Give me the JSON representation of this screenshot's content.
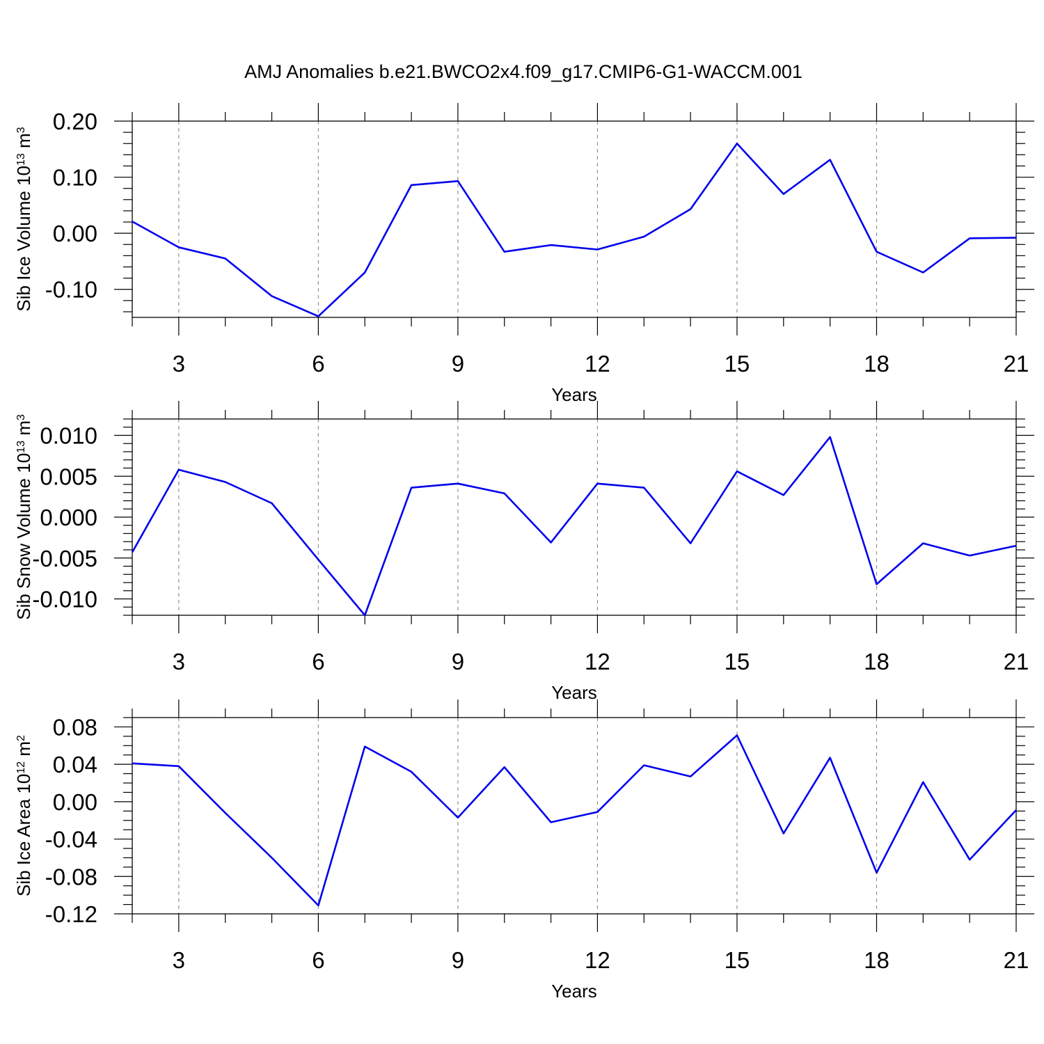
{
  "figure": {
    "title": "AMJ Anomalies b.e21.BWCO2x4.f09_g17.CMIP6-G1-WACCM.001"
  },
  "colors": {
    "series": "#0000ee",
    "axes": "#000000",
    "grid": "#888888"
  },
  "chart_data": [
    {
      "type": "line",
      "xlabel": "Years",
      "ylabel": "Sib Ice Volume 10",
      "ylabel_exponent": "13",
      "ylabel_unit": " m",
      "ylabel_unit_exponent": "3",
      "xlim": [
        2,
        21
      ],
      "ylim": [
        -0.15,
        0.2
      ],
      "x_ticks": [
        3,
        6,
        9,
        12,
        15,
        18,
        21
      ],
      "y_ticks": [
        0.2,
        0.1,
        0.0,
        -0.1
      ],
      "y_tick_labels": [
        "0.20",
        "0.10",
        "0.00",
        "-0.10"
      ],
      "y_minor_step": 0.02,
      "grid": "vertical-dashed",
      "x": [
        2,
        3,
        4,
        5,
        6,
        7,
        8,
        9,
        10,
        11,
        12,
        13,
        14,
        15,
        16,
        17,
        18,
        19,
        20,
        21
      ],
      "series": [
        {
          "values": [
            0.021,
            -0.025,
            -0.045,
            -0.112,
            -0.148,
            -0.07,
            0.086,
            0.093,
            -0.033,
            -0.021,
            -0.029,
            -0.006,
            0.043,
            0.16,
            0.07,
            0.131,
            -0.033,
            -0.07,
            -0.009,
            -0.008
          ]
        }
      ]
    },
    {
      "type": "line",
      "xlabel": "Years",
      "ylabel": "Sib Snow Volume 10",
      "ylabel_exponent": "13",
      "ylabel_unit": " m",
      "ylabel_unit_exponent": "3",
      "xlim": [
        2,
        21
      ],
      "ylim": [
        -0.012,
        0.012
      ],
      "x_ticks": [
        3,
        6,
        9,
        12,
        15,
        18,
        21
      ],
      "y_ticks": [
        0.01,
        0.005,
        0.0,
        -0.005,
        -0.01
      ],
      "y_tick_labels": [
        "0.010",
        "0.005",
        "0.000",
        "-0.005",
        "-0.010"
      ],
      "y_minor_step": 0.001,
      "grid": "vertical-dashed",
      "x": [
        2,
        3,
        4,
        5,
        6,
        7,
        8,
        9,
        10,
        11,
        12,
        13,
        14,
        15,
        16,
        17,
        18,
        19,
        20,
        21
      ],
      "series": [
        {
          "values": [
            -0.0043,
            0.0058,
            0.0043,
            0.0017,
            -0.0052,
            -0.012,
            0.0036,
            0.0041,
            0.0029,
            -0.0031,
            0.0041,
            0.0036,
            -0.0032,
            0.0056,
            0.0027,
            0.0098,
            -0.0082,
            -0.0032,
            -0.0047,
            -0.0035
          ]
        }
      ]
    },
    {
      "type": "line",
      "xlabel": "Years",
      "ylabel": "Sib Ice Area 10",
      "ylabel_exponent": "12",
      "ylabel_unit": " m",
      "ylabel_unit_exponent": "2",
      "xlim": [
        2,
        21
      ],
      "ylim": [
        -0.12,
        0.09
      ],
      "x_ticks": [
        3,
        6,
        9,
        12,
        15,
        18,
        21
      ],
      "y_ticks": [
        0.08,
        0.04,
        0.0,
        -0.04,
        -0.08,
        -0.12
      ],
      "y_tick_labels": [
        "0.08",
        "0.04",
        "0.00",
        "-0.04",
        "-0.08",
        "-0.12"
      ],
      "y_minor_step": 0.01,
      "grid": "vertical-dashed",
      "x": [
        2,
        3,
        4,
        5,
        6,
        7,
        8,
        9,
        10,
        11,
        12,
        13,
        14,
        15,
        16,
        17,
        18,
        19,
        20,
        21
      ],
      "series": [
        {
          "values": [
            0.041,
            0.038,
            -0.012,
            -0.06,
            -0.111,
            0.059,
            0.032,
            -0.017,
            0.037,
            -0.022,
            -0.011,
            0.039,
            0.027,
            0.071,
            -0.034,
            0.047,
            -0.076,
            0.021,
            -0.062,
            -0.009
          ]
        }
      ]
    }
  ]
}
